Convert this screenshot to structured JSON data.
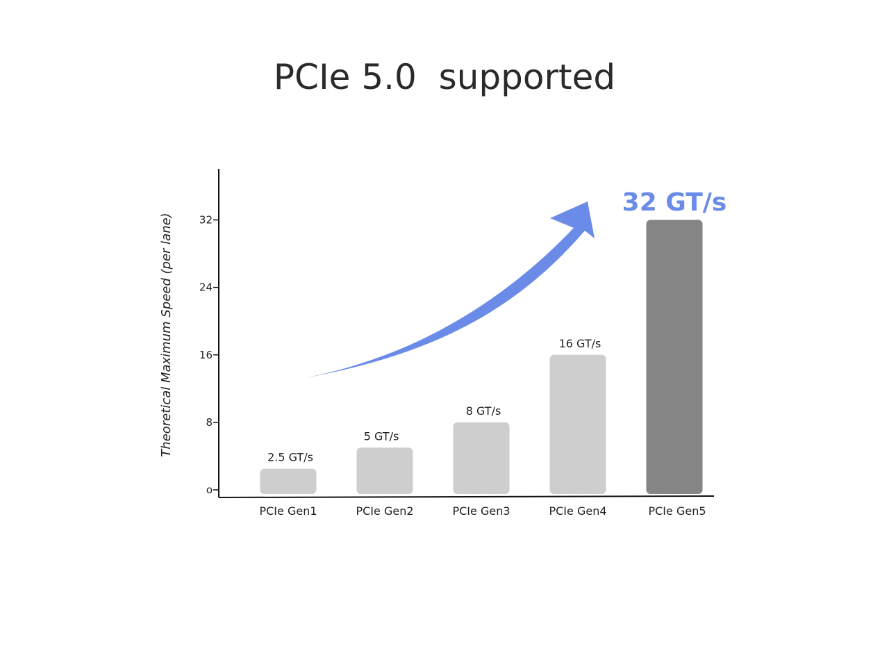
{
  "title": "PCIe 5.0  supported",
  "colors": {
    "bar": "#cecece",
    "highlight_bar": "#858585",
    "accent": "#6a8be8",
    "axis": "#111111"
  },
  "chart_data": {
    "type": "bar",
    "title": "PCIe 5.0  supported",
    "xlabel": "",
    "ylabel": "Theoretical Maximum Speed (per lane)",
    "ylim": [
      0,
      38
    ],
    "yticks": [
      0,
      8,
      16,
      24,
      32
    ],
    "ytick_labels": [
      "o",
      "8",
      "16",
      "24",
      "32"
    ],
    "categories": [
      "PCIe Gen1",
      "PCIe Gen2",
      "PCIe Gen3",
      "PCIe Gen4",
      "PCIe Gen5"
    ],
    "values": [
      2.5,
      5,
      8,
      16,
      32
    ],
    "data_labels": [
      "2.5 GT/s",
      "5 GT/s",
      "8 GT/s",
      "16 GT/s",
      "32 GT/s"
    ],
    "highlight_index": 4,
    "grid": false,
    "legend": "none",
    "annotation": "upward-trend-arrow"
  }
}
